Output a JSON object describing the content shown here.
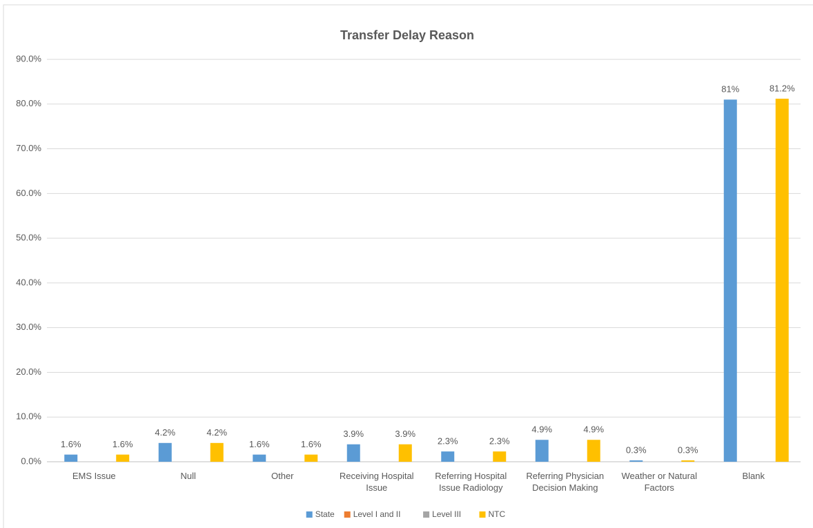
{
  "chart_data": {
    "type": "bar",
    "title": "Transfer Delay Reason",
    "categories": [
      "EMS Issue",
      "Null",
      "Other",
      "Receiving Hospital Issue",
      "Referring Hospital Issue Radiology",
      "Referring Physician Decision Making",
      "Weather or Natural Factors",
      "Blank"
    ],
    "series": [
      {
        "name": "State",
        "color": "#5b9bd5",
        "values": [
          1.6,
          4.2,
          1.6,
          3.9,
          2.3,
          4.9,
          0.3,
          81
        ],
        "value_labels": [
          "1.6%",
          "4.2%",
          "1.6%",
          "3.9%",
          "2.3%",
          "4.9%",
          "0.3%",
          "81%"
        ]
      },
      {
        "name": "Level I and II",
        "color": "#ed7d31",
        "values": [
          null,
          null,
          null,
          null,
          null,
          null,
          null,
          null
        ]
      },
      {
        "name": "Level III",
        "color": "#a5a5a5",
        "values": [
          null,
          null,
          null,
          null,
          null,
          null,
          null,
          null
        ]
      },
      {
        "name": "NTC",
        "color": "#ffc000",
        "values": [
          1.6,
          4.2,
          1.6,
          3.9,
          2.3,
          4.9,
          0.3,
          81.2
        ],
        "value_labels": [
          "1.6%",
          "4.2%",
          "1.6%",
          "3.9%",
          "2.3%",
          "4.9%",
          "0.3%",
          "81.2%"
        ]
      }
    ],
    "ylim": [
      0,
      90
    ],
    "yticks": [
      {
        "value": 0,
        "label": "0.0%"
      },
      {
        "value": 10,
        "label": "10.0%"
      },
      {
        "value": 20,
        "label": "20.0%"
      },
      {
        "value": 30,
        "label": "30.0%"
      },
      {
        "value": 40,
        "label": "40.0%"
      },
      {
        "value": 50,
        "label": "50.0%"
      },
      {
        "value": 60,
        "label": "60.0%"
      },
      {
        "value": 70,
        "label": "70.0%"
      },
      {
        "value": 80,
        "label": "80.0%"
      },
      {
        "value": 90,
        "label": "90.0%"
      }
    ],
    "grid": true,
    "legend": "bottom"
  }
}
